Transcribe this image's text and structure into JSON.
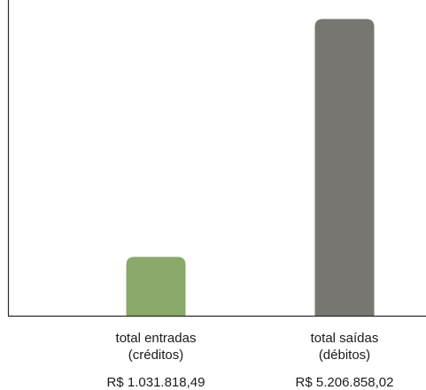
{
  "chart_data": {
    "type": "bar",
    "title": "",
    "xlabel": "",
    "ylabel": "",
    "ylim": [
      0,
      5540000
    ],
    "grid": false,
    "legend": "none",
    "categories": [
      {
        "line1": "total entradas",
        "line2": "(créditos)"
      },
      {
        "line1": "total saídas",
        "line2": "(débitos)"
      }
    ],
    "values": [
      1031818.49,
      5206858.02
    ],
    "value_labels": [
      "R$ 1.031.818,49",
      "R$ 5.206.858,02"
    ],
    "colors": [
      "#8aa96a",
      "#787670"
    ]
  },
  "colors": {
    "axis": "#2a2a2a"
  }
}
